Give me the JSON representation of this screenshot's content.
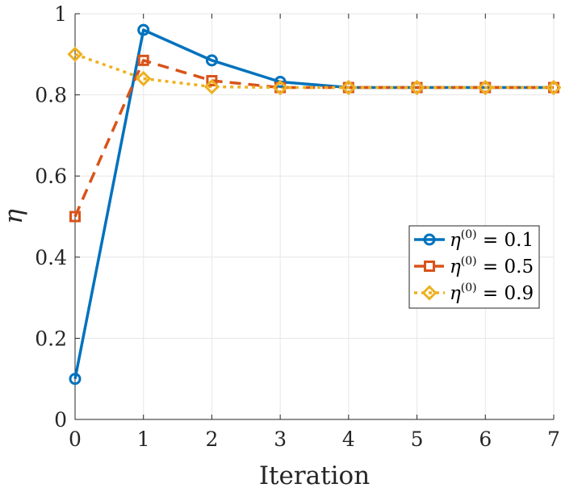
{
  "chart_data": {
    "type": "line",
    "title": "",
    "xlabel": "Iteration",
    "ylabel": "η",
    "xlim": [
      0,
      7
    ],
    "ylim": [
      0,
      1
    ],
    "grid": true,
    "xticks": [
      0,
      1,
      2,
      3,
      4,
      5,
      6,
      7
    ],
    "xtick_labels": [
      "0",
      "1",
      "2",
      "3",
      "4",
      "5",
      "6",
      "7"
    ],
    "yticks": [
      0,
      0.2,
      0.4,
      0.6,
      0.8,
      1
    ],
    "ytick_labels": [
      "0",
      "0.2",
      "0.4",
      "0.6",
      "0.8",
      "1"
    ],
    "x": [
      0,
      1,
      2,
      3,
      4,
      5,
      6,
      7
    ],
    "legend_position": "right",
    "series": [
      {
        "name": "η(0) = 0.1",
        "legend_base": "η",
        "legend_sup": "(0)",
        "legend_rest": " = 0.1",
        "values": [
          0.1,
          0.96,
          0.885,
          0.832,
          0.818,
          0.818,
          0.818,
          0.818
        ],
        "color": "#0072BD",
        "dash": "solid",
        "marker": "circle"
      },
      {
        "name": "η(0) = 0.5",
        "legend_base": "η",
        "legend_sup": "(0)",
        "legend_rest": " = 0.5",
        "values": [
          0.5,
          0.885,
          0.835,
          0.818,
          0.818,
          0.818,
          0.818,
          0.818
        ],
        "color": "#D95319",
        "dash": "dashed",
        "marker": "square"
      },
      {
        "name": "η(0) = 0.9",
        "legend_base": "η",
        "legend_sup": "(0)",
        "legend_rest": " = 0.9",
        "values": [
          0.9,
          0.84,
          0.82,
          0.818,
          0.818,
          0.818,
          0.818,
          0.818
        ],
        "color": "#EDB120",
        "dash": "dotted",
        "marker": "diamond"
      }
    ]
  }
}
